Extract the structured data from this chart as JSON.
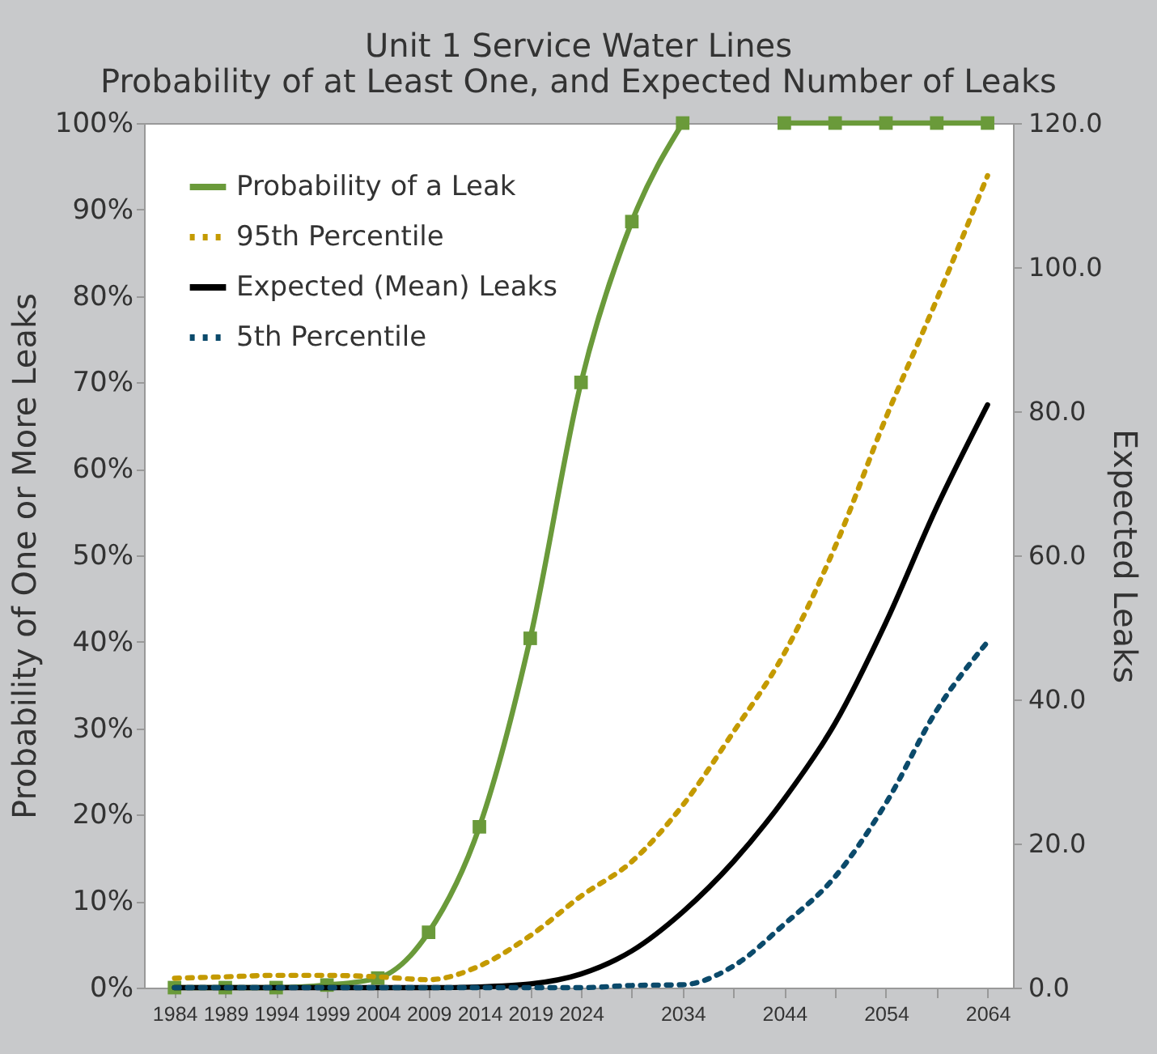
{
  "chart_data": {
    "type": "line",
    "title": "Unit 1 Service Water Lines",
    "subtitle": "Probability of at Least One, and Expected Number of Leaks",
    "ylabel": "Probability of One or More Leaks",
    "y2label": "Expected Leaks",
    "x": [
      1984,
      1989,
      1994,
      1999,
      2004,
      2009,
      2014,
      2019,
      2024,
      2029,
      2034,
      2039,
      2044,
      2049,
      2054,
      2059,
      2064
    ],
    "xlim": [
      1981,
      2066.5
    ],
    "xticks": [
      1984,
      1989,
      1994,
      1999,
      2004,
      2009,
      2014,
      2019,
      2024,
      {
        "value": 2029,
        "label": null
      },
      2034,
      {
        "value": 2039,
        "label": null
      },
      2044,
      {
        "value": 2049,
        "label": null
      },
      2054,
      {
        "value": 2059,
        "label": null
      },
      2064
    ],
    "ylim": [
      0,
      100
    ],
    "yticks": [
      {
        "value": 0,
        "label": "0%"
      },
      {
        "value": 10,
        "label": "10%"
      },
      {
        "value": 20,
        "label": "20%"
      },
      {
        "value": 30,
        "label": "30%"
      },
      {
        "value": 40,
        "label": "40%"
      },
      {
        "value": 50,
        "label": "50%"
      },
      {
        "value": 60,
        "label": "60%"
      },
      {
        "value": 70,
        "label": "70%"
      },
      {
        "value": 80,
        "label": "80%"
      },
      {
        "value": 90,
        "label": "90%"
      },
      {
        "value": 100,
        "label": "100%"
      }
    ],
    "y2lim": [
      0,
      120
    ],
    "y2ticks": [
      {
        "value": 0,
        "label": "0.0"
      },
      {
        "value": 20,
        "label": "20.0"
      },
      {
        "value": 40,
        "label": "40.0"
      },
      {
        "value": 60,
        "label": "60.0"
      },
      {
        "value": 80,
        "label": "80.0"
      },
      {
        "value": 100,
        "label": "100.0"
      },
      {
        "value": 120,
        "label": "120.0"
      }
    ],
    "legend": "top left",
    "series": [
      {
        "name": "Probability of a Leak",
        "color": "#6a9a3a",
        "marker": "square",
        "line_style": "solid",
        "values": [
          0,
          0,
          0,
          0.3,
          1.1,
          6.4,
          18.6,
          40.4,
          70,
          88.6,
          100,
          null,
          100,
          100,
          100,
          100,
          100
        ]
      },
      {
        "name": "95th Percentile",
        "color": "#c49a00",
        "axis": "y2",
        "line_style": "dotted",
        "values": [
          1.3,
          1.5,
          1.7,
          1.7,
          1.5,
          1.1,
          3.0,
          7.2,
          12.7,
          17.5,
          25.3,
          35.5,
          46.4,
          61.2,
          79.1,
          95.5,
          112.7
        ]
      },
      {
        "name": "Expected (Mean) Leaks",
        "color": "#000000",
        "axis": "y2",
        "line_style": "solid",
        "values": [
          0,
          0,
          0,
          0,
          0,
          0,
          0.1,
          0.5,
          1.9,
          5.1,
          10.5,
          17.5,
          26.2,
          36.7,
          50.7,
          66.7,
          80.9
        ]
      },
      {
        "name": "5th Percentile",
        "color": "#0b4a6b",
        "axis": "y2",
        "line_style": "dotted",
        "values": [
          0,
          0,
          0,
          0,
          0,
          0,
          0,
          0,
          0,
          0.3,
          0.4,
          3.0,
          8.8,
          15.4,
          25.6,
          38.5,
          48.0
        ]
      }
    ]
  }
}
